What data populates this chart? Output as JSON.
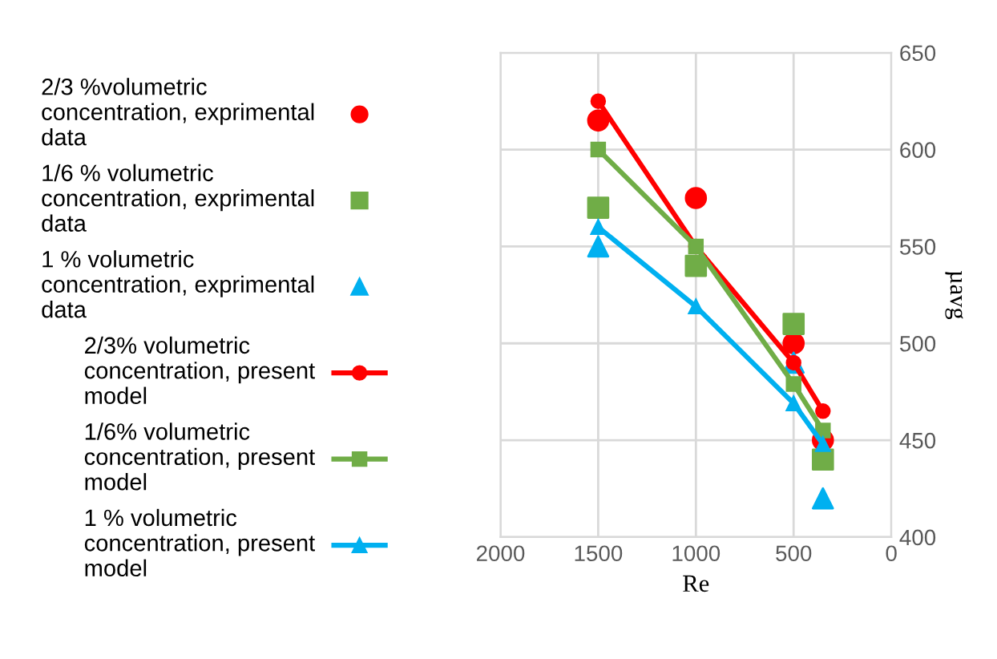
{
  "chart_data": {
    "type": "line",
    "xlabel": "Re",
    "ylabel": "µavg",
    "xlim": [
      2000,
      0
    ],
    "xticks": [
      0,
      500,
      1000,
      1500,
      2000
    ],
    "ylim": [
      400,
      650
    ],
    "yticks": [
      400,
      450,
      500,
      550,
      600,
      650
    ],
    "grid": true,
    "legend": "left",
    "series": [
      {
        "name": "2/3 %volumetric concentration, exprimental data",
        "type": "scatter",
        "marker": "circle",
        "color": "#ff0000",
        "x": [
          1500,
          1000,
          500,
          350
        ],
        "values": [
          615,
          575,
          500,
          450
        ]
      },
      {
        "name": "1/6 % volumetric concentration, exprimental data",
        "type": "scatter",
        "marker": "square",
        "color": "#70ad47",
        "x": [
          1500,
          1000,
          500,
          350
        ],
        "values": [
          570,
          540,
          510,
          440
        ]
      },
      {
        "name": "1 % volumetric concentration, exprimental data",
        "type": "scatter",
        "marker": "triangle",
        "color": "#00b0f0",
        "x": [
          1500,
          1000,
          500,
          350
        ],
        "values": [
          550,
          null,
          490,
          420
        ]
      },
      {
        "name": "2/3% volumetric concentration, present model",
        "marker": "circle",
        "color": "#ff0000",
        "x": [
          1500,
          1000,
          500,
          350
        ],
        "values": [
          625,
          550,
          490,
          465
        ]
      },
      {
        "name": "1/6% volumetric concentration, present model",
        "marker": "square",
        "color": "#70ad47",
        "x": [
          1500,
          1000,
          500,
          350
        ],
        "values": [
          600,
          550,
          479,
          455
        ]
      },
      {
        "name": "1 % volumetric concentration, present model",
        "marker": "triangle",
        "color": "#00b0f0",
        "x": [
          1500,
          1000,
          500,
          350
        ],
        "values": [
          560,
          519,
          469,
          448
        ]
      }
    ]
  }
}
